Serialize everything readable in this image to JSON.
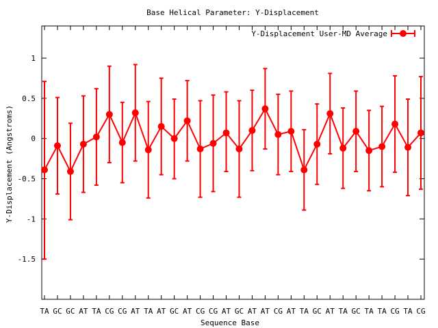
{
  "chart_data": {
    "type": "line",
    "title": "Base  Helical Parameter: Y-Displacement",
    "xlabel": "Sequence Base",
    "ylabel": "Y-Displacement (Angstroms)",
    "ylim": [
      -2,
      1.4
    ],
    "yticks": [
      1,
      0.5,
      0,
      -0.5,
      -1,
      -1.5
    ],
    "ytick_labels": [
      "1",
      "0.5",
      "0",
      "-0.5",
      "-1",
      "-1.5"
    ],
    "categories": [
      "TA",
      "GC",
      "GC",
      "AT",
      "TA",
      "CG",
      "CG",
      "AT",
      "TA",
      "AT",
      "GC",
      "AT",
      "CG",
      "CG",
      "AT",
      "GC",
      "AT",
      "AT",
      "CG",
      "AT",
      "TA",
      "GC",
      "AT",
      "TA",
      "GC",
      "TA",
      "TA",
      "CG",
      "TA",
      "CG"
    ],
    "legend_position": "top-right",
    "grid": false,
    "series": [
      {
        "name": "Y-Displacement User-MD Average",
        "color": "#ff0000",
        "values": [
          -0.39,
          -0.09,
          -0.41,
          -0.07,
          0.02,
          0.3,
          -0.05,
          0.32,
          -0.14,
          0.15,
          0.0,
          0.22,
          -0.13,
          -0.06,
          0.07,
          -0.13,
          0.1,
          0.37,
          0.05,
          0.09,
          -0.39,
          -0.07,
          0.31,
          -0.12,
          0.09,
          -0.15,
          -0.1,
          0.18,
          -0.11,
          0.07
        ],
        "error_high": [
          0.71,
          0.51,
          0.19,
          0.53,
          0.62,
          0.9,
          0.45,
          0.92,
          0.46,
          0.75,
          0.49,
          0.72,
          0.47,
          0.54,
          0.58,
          0.47,
          0.6,
          0.87,
          0.55,
          0.59,
          0.11,
          0.43,
          0.81,
          0.38,
          0.59,
          0.35,
          0.4,
          0.78,
          0.49,
          0.77
        ],
        "error_low": [
          -1.5,
          -0.69,
          -1.01,
          -0.67,
          -0.58,
          -0.3,
          -0.55,
          -0.28,
          -0.74,
          -0.45,
          -0.5,
          -0.28,
          -0.73,
          -0.66,
          -0.41,
          -0.73,
          -0.4,
          -0.13,
          -0.45,
          -0.41,
          -0.89,
          -0.57,
          -0.19,
          -0.62,
          -0.41,
          -0.65,
          -0.6,
          -0.42,
          -0.71,
          -0.63
        ]
      }
    ]
  }
}
